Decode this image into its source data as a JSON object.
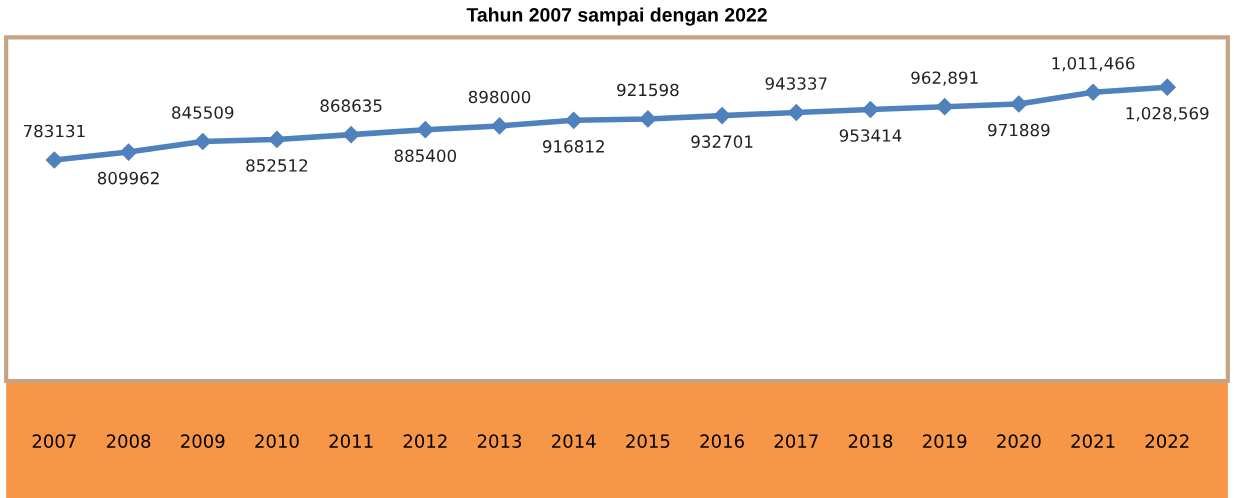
{
  "chart_data": {
    "type": "line",
    "title": "Tahun 2007 sampai dengan 2022",
    "categories": [
      "2007",
      "2008",
      "2009",
      "2010",
      "2011",
      "2012",
      "2013",
      "2014",
      "2015",
      "2016",
      "2017",
      "2018",
      "2019",
      "2020",
      "2021",
      "2022"
    ],
    "series": [
      {
        "color": "#4f81bd",
        "values": [
          783131,
          809962,
          845509,
          852512,
          868635,
          885400,
          898000,
          916812,
          921598,
          932701,
          943337,
          953414,
          962891,
          971889,
          1011466,
          1028569
        ],
        "value_labels": [
          "783131",
          "809962",
          "845509",
          "852512",
          "868635",
          "885400",
          "898000",
          "916812",
          "921598",
          "932701",
          "943337",
          "953414",
          "962,891",
          "971889",
          "1,011,466",
          "1,028,569"
        ]
      }
    ],
    "marker": "diamond",
    "line_style": "solid",
    "grid": false,
    "legend": false,
    "tick_labels": "x"
  }
}
